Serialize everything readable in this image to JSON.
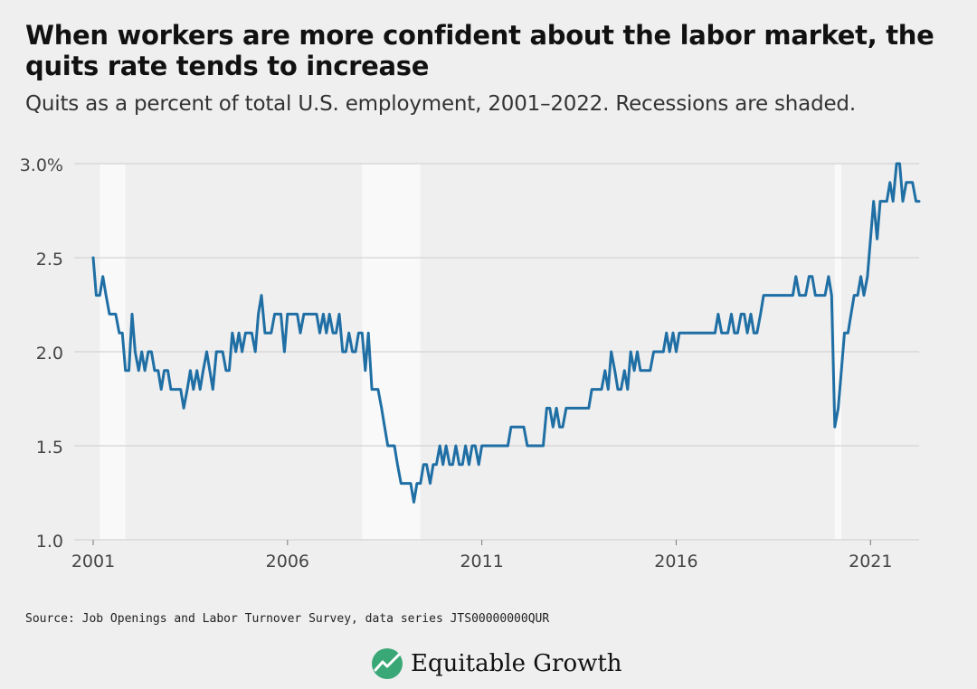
{
  "header": {
    "title": "When workers are more confident about the labor market, the quits rate tends to increase",
    "subtitle": "Quits as a percent of total U.S. employment, 2001–2022. Recessions are shaded."
  },
  "footer": {
    "source": "Source: Job Openings and Labor Turnover Survey, data series JTS00000000QUR",
    "brand": "Equitable Growth"
  },
  "colors": {
    "line": "#1f6fa5",
    "recession": "#f9f9f9",
    "grid": "#cccccc",
    "brand_green": "#3aa876"
  },
  "chart_data": {
    "type": "line",
    "grid": true,
    "x_tick_labels": [
      "2001",
      "2006",
      "2011",
      "2016",
      "2021"
    ],
    "x_ticks": [
      2001,
      2006,
      2011,
      2016,
      2021
    ],
    "y_tick_labels": [
      "3.0%",
      "2.5",
      "2.0",
      "1.5",
      "1.0"
    ],
    "y_ticks": [
      3.0,
      2.5,
      2.0,
      1.5,
      1.0
    ],
    "xlim": [
      2001.0,
      2022.25
    ],
    "ylim": [
      1.0,
      3.0
    ],
    "recessions": [
      [
        2001.17,
        2001.83
      ],
      [
        2007.92,
        2009.42
      ],
      [
        2020.08,
        2020.25
      ]
    ],
    "x": [
      2001.0,
      2001.08,
      2001.17,
      2001.25,
      2001.33,
      2001.42,
      2001.5,
      2001.58,
      2001.67,
      2001.75,
      2001.83,
      2001.92,
      2002.0,
      2002.08,
      2002.17,
      2002.25,
      2002.33,
      2002.42,
      2002.5,
      2002.58,
      2002.67,
      2002.75,
      2002.83,
      2002.92,
      2003.0,
      2003.08,
      2003.17,
      2003.25,
      2003.33,
      2003.42,
      2003.5,
      2003.58,
      2003.67,
      2003.75,
      2003.83,
      2003.92,
      2004.0,
      2004.08,
      2004.17,
      2004.25,
      2004.33,
      2004.42,
      2004.5,
      2004.58,
      2004.67,
      2004.75,
      2004.83,
      2004.92,
      2005.0,
      2005.08,
      2005.17,
      2005.25,
      2005.33,
      2005.42,
      2005.5,
      2005.58,
      2005.67,
      2005.75,
      2005.83,
      2005.92,
      2006.0,
      2006.08,
      2006.17,
      2006.25,
      2006.33,
      2006.42,
      2006.5,
      2006.58,
      2006.67,
      2006.75,
      2006.83,
      2006.92,
      2007.0,
      2007.08,
      2007.17,
      2007.25,
      2007.33,
      2007.42,
      2007.5,
      2007.58,
      2007.67,
      2007.75,
      2007.83,
      2007.92,
      2008.0,
      2008.08,
      2008.17,
      2008.25,
      2008.33,
      2008.42,
      2008.5,
      2008.58,
      2008.67,
      2008.75,
      2008.83,
      2008.92,
      2009.0,
      2009.08,
      2009.17,
      2009.25,
      2009.33,
      2009.42,
      2009.5,
      2009.58,
      2009.67,
      2009.75,
      2009.83,
      2009.92,
      2010.0,
      2010.08,
      2010.17,
      2010.25,
      2010.33,
      2010.42,
      2010.5,
      2010.58,
      2010.67,
      2010.75,
      2010.83,
      2010.92,
      2011.0,
      2011.08,
      2011.17,
      2011.25,
      2011.33,
      2011.42,
      2011.5,
      2011.58,
      2011.67,
      2011.75,
      2011.83,
      2011.92,
      2012.0,
      2012.08,
      2012.17,
      2012.25,
      2012.33,
      2012.42,
      2012.5,
      2012.58,
      2012.67,
      2012.75,
      2012.83,
      2012.92,
      2013.0,
      2013.08,
      2013.17,
      2013.25,
      2013.33,
      2013.42,
      2013.5,
      2013.58,
      2013.67,
      2013.75,
      2013.83,
      2013.92,
      2014.0,
      2014.08,
      2014.17,
      2014.25,
      2014.33,
      2014.42,
      2014.5,
      2014.58,
      2014.67,
      2014.75,
      2014.83,
      2014.92,
      2015.0,
      2015.08,
      2015.17,
      2015.25,
      2015.33,
      2015.42,
      2015.5,
      2015.58,
      2015.67,
      2015.75,
      2015.83,
      2015.92,
      2016.0,
      2016.08,
      2016.17,
      2016.25,
      2016.33,
      2016.42,
      2016.5,
      2016.58,
      2016.67,
      2016.75,
      2016.83,
      2016.92,
      2017.0,
      2017.08,
      2017.17,
      2017.25,
      2017.33,
      2017.42,
      2017.5,
      2017.58,
      2017.67,
      2017.75,
      2017.83,
      2017.92,
      2018.0,
      2018.08,
      2018.17,
      2018.25,
      2018.33,
      2018.42,
      2018.5,
      2018.58,
      2018.67,
      2018.75,
      2018.83,
      2018.92,
      2019.0,
      2019.08,
      2019.17,
      2019.25,
      2019.33,
      2019.42,
      2019.5,
      2019.58,
      2019.67,
      2019.75,
      2019.83,
      2019.92,
      2020.0,
      2020.08,
      2020.17,
      2020.25,
      2020.33,
      2020.42,
      2020.5,
      2020.58,
      2020.67,
      2020.75,
      2020.83,
      2020.92,
      2021.0,
      2021.08,
      2021.17,
      2021.25,
      2021.33,
      2021.42,
      2021.5,
      2021.58,
      2021.67,
      2021.75,
      2021.83,
      2021.92,
      2022.0,
      2022.08,
      2022.17,
      2022.25
    ],
    "values": [
      2.5,
      2.3,
      2.3,
      2.4,
      2.3,
      2.2,
      2.2,
      2.2,
      2.1,
      2.1,
      1.9,
      1.9,
      2.2,
      2.0,
      1.9,
      2.0,
      1.9,
      2.0,
      2.0,
      1.9,
      1.9,
      1.8,
      1.9,
      1.9,
      1.8,
      1.8,
      1.8,
      1.8,
      1.7,
      1.8,
      1.9,
      1.8,
      1.9,
      1.8,
      1.9,
      2.0,
      1.9,
      1.8,
      2.0,
      2.0,
      2.0,
      1.9,
      1.9,
      2.1,
      2.0,
      2.1,
      2.0,
      2.1,
      2.1,
      2.1,
      2.0,
      2.2,
      2.3,
      2.1,
      2.1,
      2.1,
      2.2,
      2.2,
      2.2,
      2.0,
      2.2,
      2.2,
      2.2,
      2.2,
      2.1,
      2.2,
      2.2,
      2.2,
      2.2,
      2.2,
      2.1,
      2.2,
      2.1,
      2.2,
      2.1,
      2.1,
      2.2,
      2.0,
      2.0,
      2.1,
      2.0,
      2.0,
      2.1,
      2.1,
      1.9,
      2.1,
      1.8,
      1.8,
      1.8,
      1.7,
      1.6,
      1.5,
      1.5,
      1.5,
      1.4,
      1.3,
      1.3,
      1.3,
      1.3,
      1.2,
      1.3,
      1.3,
      1.4,
      1.4,
      1.3,
      1.4,
      1.4,
      1.5,
      1.4,
      1.5,
      1.4,
      1.4,
      1.5,
      1.4,
      1.4,
      1.5,
      1.4,
      1.5,
      1.5,
      1.4,
      1.5,
      1.5,
      1.5,
      1.5,
      1.5,
      1.5,
      1.5,
      1.5,
      1.5,
      1.6,
      1.6,
      1.6,
      1.6,
      1.6,
      1.5,
      1.5,
      1.5,
      1.5,
      1.5,
      1.5,
      1.7,
      1.7,
      1.6,
      1.7,
      1.6,
      1.6,
      1.7,
      1.7,
      1.7,
      1.7,
      1.7,
      1.7,
      1.7,
      1.7,
      1.8,
      1.8,
      1.8,
      1.8,
      1.9,
      1.8,
      2.0,
      1.9,
      1.8,
      1.8,
      1.9,
      1.8,
      2.0,
      1.9,
      2.0,
      1.9,
      1.9,
      1.9,
      1.9,
      2.0,
      2.0,
      2.0,
      2.0,
      2.1,
      2.0,
      2.1,
      2.0,
      2.1,
      2.1,
      2.1,
      2.1,
      2.1,
      2.1,
      2.1,
      2.1,
      2.1,
      2.1,
      2.1,
      2.1,
      2.2,
      2.1,
      2.1,
      2.1,
      2.2,
      2.1,
      2.1,
      2.2,
      2.2,
      2.1,
      2.2,
      2.1,
      2.1,
      2.2,
      2.3,
      2.3,
      2.3,
      2.3,
      2.3,
      2.3,
      2.3,
      2.3,
      2.3,
      2.3,
      2.4,
      2.3,
      2.3,
      2.3,
      2.4,
      2.4,
      2.3,
      2.3,
      2.3,
      2.3,
      2.4,
      2.3,
      1.6,
      1.7,
      1.9,
      2.1,
      2.1,
      2.2,
      2.3,
      2.3,
      2.4,
      2.3,
      2.4,
      2.6,
      2.8,
      2.6,
      2.8,
      2.8,
      2.8,
      2.9,
      2.8,
      3.0,
      3.0,
      2.8,
      2.9,
      2.9,
      2.9,
      2.8,
      2.8
    ]
  }
}
